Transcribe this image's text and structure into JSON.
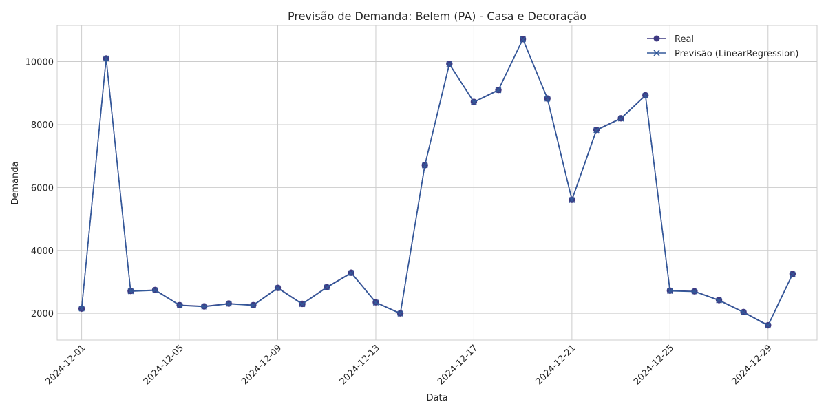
{
  "chart_data": {
    "type": "line",
    "title": "Previsão de Demanda: Belem (PA) - Casa e Decoração",
    "xlabel": "Data",
    "ylabel": "Demanda",
    "x_axis_type": "date",
    "xlim": [
      "2024-11-30",
      "2024-12-31"
    ],
    "ylim": [
      1150,
      11150
    ],
    "yticks": [
      2000,
      4000,
      6000,
      8000,
      10000
    ],
    "xticks": [
      "2024-12-01",
      "2024-12-05",
      "2024-12-09",
      "2024-12-13",
      "2024-12-17",
      "2024-12-21",
      "2024-12-25",
      "2024-12-29"
    ],
    "grid": true,
    "legend_position": "top-right",
    "x": [
      "2024-12-01",
      "2024-12-02",
      "2024-12-03",
      "2024-12-04",
      "2024-12-05",
      "2024-12-06",
      "2024-12-07",
      "2024-12-08",
      "2024-12-09",
      "2024-12-10",
      "2024-12-11",
      "2024-12-12",
      "2024-12-13",
      "2024-12-14",
      "2024-12-15",
      "2024-12-16",
      "2024-12-17",
      "2024-12-18",
      "2024-12-19",
      "2024-12-20",
      "2024-12-21",
      "2024-12-22",
      "2024-12-23",
      "2024-12-24",
      "2024-12-25",
      "2024-12-26",
      "2024-12-27",
      "2024-12-28",
      "2024-12-29",
      "2024-12-30"
    ],
    "series": [
      {
        "name": "Real",
        "marker": "circle",
        "color": "#3f3a82",
        "values": [
          2150,
          10100,
          2710,
          2740,
          2260,
          2220,
          2310,
          2260,
          2810,
          2300,
          2830,
          3290,
          2350,
          2000,
          6710,
          9930,
          8720,
          9100,
          10720,
          8830,
          5610,
          7830,
          8200,
          8930,
          2720,
          2700,
          2420,
          2040,
          1620,
          3250
        ]
      },
      {
        "name": "Previsão (LinearRegression)",
        "marker": "x",
        "color": "#33599a",
        "values": [
          2150,
          10100,
          2700,
          2730,
          2250,
          2210,
          2300,
          2250,
          2800,
          2290,
          2820,
          3280,
          2340,
          1990,
          6700,
          9920,
          8710,
          9090,
          10710,
          8820,
          5600,
          7820,
          8190,
          8920,
          2710,
          2690,
          2410,
          2030,
          1610,
          3240
        ]
      }
    ]
  }
}
